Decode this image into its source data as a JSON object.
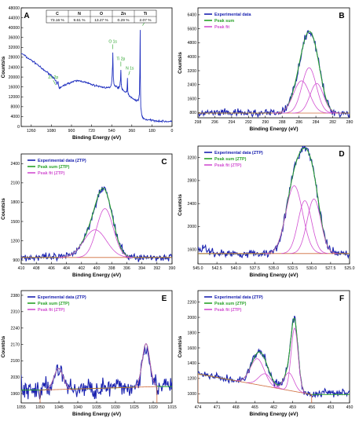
{
  "chart_data": [
    {
      "panel": "A",
      "type": "line",
      "xlabel": "Binding Energy (eV)",
      "ylabel": "Counts\\s",
      "xlim": [
        1350,
        0
      ],
      "ylim": [
        0,
        48000
      ],
      "x_ticks": [
        "1260",
        "1080",
        "900",
        "720",
        "540",
        "360",
        "180",
        "0"
      ],
      "y_ticks": [
        "0",
        "4000",
        "8000",
        "12000",
        "16000",
        "20000",
        "24000",
        "28000",
        "32000",
        "36000",
        "40000",
        "44000",
        "48000"
      ],
      "table": {
        "headers": [
          "C",
          "N",
          "O",
          "Zn",
          "Ti"
        ],
        "values": [
          "73.16 %",
          "9.61 %",
          "13.27 %",
          "0.29 %",
          "2.07 %"
        ]
      },
      "annotations": [
        {
          "text": "Zn 2p",
          "x": 1021,
          "y": 16500
        },
        {
          "text": "O 1s",
          "x": 530,
          "y": 31000
        },
        {
          "text": "Ti 2p",
          "x": 458,
          "y": 24000
        },
        {
          "text": "N 1s",
          "x": 399,
          "y": 20500
        },
        {
          "text": "C 1s",
          "x": 285,
          "y": 40500
        }
      ],
      "series": [
        {
          "name": "survey",
          "color": "#1f2fbf",
          "x": [
            1350,
            1320,
            1300,
            1280,
            1260,
            1240,
            1220,
            1200,
            1180,
            1160,
            1140,
            1120,
            1100,
            1080,
            1060,
            1040,
            1030,
            1021,
            1010,
            1000,
            980,
            960,
            940,
            920,
            900,
            880,
            860,
            840,
            820,
            800,
            780,
            760,
            740,
            720,
            700,
            680,
            660,
            640,
            620,
            600,
            580,
            560,
            545,
            538,
            532,
            530,
            526,
            520,
            500,
            480,
            470,
            462,
            458,
            455,
            450,
            440,
            420,
            405,
            402,
            399,
            396,
            390,
            380,
            360,
            340,
            320,
            300,
            292,
            288,
            285,
            283,
            280,
            270,
            260,
            240,
            220,
            200,
            180,
            160,
            140,
            120,
            100,
            80,
            60,
            40,
            20,
            0
          ],
          "y": [
            29500,
            28800,
            27900,
            27400,
            26800,
            26200,
            25500,
            24900,
            24000,
            23200,
            22600,
            22000,
            21300,
            20700,
            19700,
            18300,
            17000,
            18200,
            15400,
            15800,
            16200,
            16800,
            17200,
            17600,
            17900,
            18200,
            18400,
            18500,
            18400,
            18200,
            17900,
            17600,
            17300,
            17000,
            16700,
            16500,
            16300,
            16100,
            15900,
            15800,
            15700,
            15600,
            16500,
            19000,
            25000,
            30000,
            20500,
            17000,
            16200,
            15700,
            16000,
            18500,
            23000,
            17500,
            15500,
            14600,
            13900,
            14300,
            15800,
            19500,
            14500,
            12800,
            12200,
            11600,
            11000,
            10500,
            10600,
            13000,
            24000,
            39000,
            18000,
            8000,
            4500,
            3400,
            2900,
            2700,
            2600,
            2500,
            2400,
            2300,
            2200,
            2150,
            2100,
            2050,
            2000,
            1950,
            1950
          ]
        }
      ]
    },
    {
      "panel": "B",
      "type": "line",
      "xlabel": "Binding Energy (eV)",
      "ylabel": "Counts\\s",
      "xlim": [
        298,
        280
      ],
      "ylim": [
        500,
        6800
      ],
      "x_ticks": [
        "298",
        "296",
        "294",
        "292",
        "290",
        "288",
        "286",
        "284",
        "282",
        "280"
      ],
      "y_ticks": [
        "800",
        "1600",
        "2400",
        "3200",
        "4000",
        "4800",
        "5600",
        "6400"
      ],
      "legend": [
        "Experimental data",
        "Peak sum",
        "Peak fit"
      ],
      "baseline": 770,
      "peaks": [
        {
          "center": 285.7,
          "height": 1850,
          "width": 0.95
        },
        {
          "center": 284.8,
          "height": 2600,
          "width": 0.85
        },
        {
          "center": 283.9,
          "height": 1700,
          "width": 0.8
        }
      ]
    },
    {
      "panel": "C",
      "type": "line",
      "xlabel": "Binding Energy (eV)",
      "ylabel": "Counts\\s",
      "xlim": [
        410,
        390
      ],
      "ylim": [
        840,
        2550
      ],
      "x_ticks": [
        "410",
        "408",
        "406",
        "404",
        "402",
        "400",
        "398",
        "396",
        "394",
        "392",
        "390"
      ],
      "y_ticks": [
        "900",
        "1200",
        "1500",
        "1800",
        "2100",
        "2400"
      ],
      "legend": [
        "Experimental data (ZTP)",
        "Peak sum (ZTP)",
        "Peak fit (ZTP)"
      ],
      "baseline": 940,
      "peaks": [
        {
          "center": 400.2,
          "height": 430,
          "width": 1.5
        },
        {
          "center": 398.9,
          "height": 760,
          "width": 1.1
        }
      ]
    },
    {
      "panel": "D",
      "type": "line",
      "xlabel": "Binding Energy (eV)",
      "ylabel": "Counts\\s",
      "xlim": [
        545,
        525
      ],
      "ylim": [
        1350,
        3400
      ],
      "x_ticks": [
        "545.0",
        "542.5",
        "540.0",
        "537.5",
        "535.0",
        "532.5",
        "530.0",
        "527.5",
        "525.0"
      ],
      "y_ticks": [
        "1600",
        "2000",
        "2400",
        "2800",
        "3200"
      ],
      "legend": [
        "Experimental data (ZTP)",
        "Peak sum (ZTP)",
        "Peak fit (ZTP)"
      ],
      "baseline": 1530,
      "peaks": [
        {
          "center": 532.3,
          "height": 1180,
          "width": 1.1
        },
        {
          "center": 530.9,
          "height": 920,
          "width": 0.9
        },
        {
          "center": 529.7,
          "height": 950,
          "width": 0.9
        }
      ]
    },
    {
      "panel": "E",
      "type": "line",
      "xlabel": "Binding Energy (eV)",
      "ylabel": "Counts\\s",
      "xlim": [
        1055,
        1015
      ],
      "ylim": [
        1920,
        2400
      ],
      "x_ticks": [
        "1055",
        "1050",
        "1045",
        "1040",
        "1035",
        "1030",
        "1025",
        "1020",
        "1015"
      ],
      "y_ticks": [
        "1960",
        "2030",
        "2100",
        "2170",
        "2240",
        "2310",
        "2380"
      ],
      "legend": [
        "Experimental data (ZTP)",
        "Peak sum (ZTP)",
        "Peak fit (ZTP)"
      ],
      "baseline_range": [
        1050,
        1019
      ],
      "baseline": [
        1975,
        1990
      ],
      "peaks": [
        {
          "center": 1045.1,
          "height": 90,
          "width": 1.2
        },
        {
          "center": 1021.9,
          "height": 185,
          "width": 1.0
        }
      ]
    },
    {
      "panel": "F",
      "type": "line",
      "xlabel": "Binding Energy (eV)",
      "ylabel": "Counts\\s",
      "xlim": [
        474,
        450
      ],
      "ylim": [
        880,
        2350
      ],
      "x_ticks": [
        "474",
        "471",
        "468",
        "465",
        "462",
        "459",
        "456",
        "453",
        "450"
      ],
      "y_ticks": [
        "1000",
        "1200",
        "1400",
        "1600",
        "1800",
        "2000",
        "2200"
      ],
      "legend": [
        "Experimental data (ZTP)",
        "Peak sum (ZTP)",
        "Peak fit (ZTP)"
      ],
      "baseline_range": [
        474,
        456
      ],
      "baseline": [
        1260,
        990
      ],
      "peaks": [
        {
          "center": 464.6,
          "height": 340,
          "width": 1.1
        },
        {
          "center": 463.4,
          "height": 160,
          "width": 1.0
        },
        {
          "center": 459.6,
          "height": 230,
          "width": 0.8
        },
        {
          "center": 458.7,
          "height": 830,
          "width": 0.55
        }
      ]
    }
  ]
}
